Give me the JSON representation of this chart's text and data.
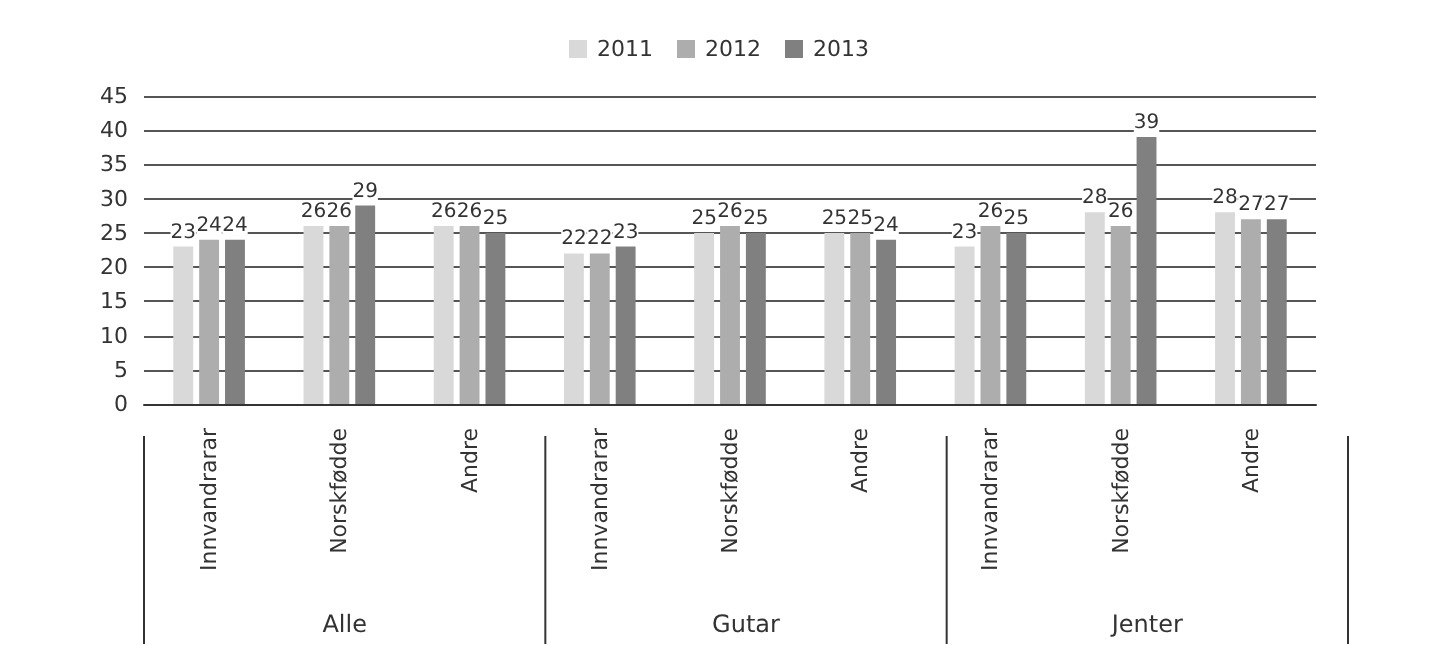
{
  "chart_data": {
    "type": "bar",
    "categories": [
      "Innvandrarar",
      "Norskfødde",
      "Andre",
      "Innvandrarar",
      "Norskfødde",
      "Andre",
      "Innvandrarar",
      "Norskfødde",
      "Andre"
    ],
    "series": [
      {
        "name": "2011",
        "color": "#d9d9d9",
        "values": [
          23,
          26,
          26,
          22,
          25,
          25,
          23,
          28,
          28
        ]
      },
      {
        "name": "2012",
        "color": "#adadad",
        "values": [
          24,
          26,
          26,
          22,
          26,
          25,
          26,
          26,
          27
        ]
      },
      {
        "name": "2013",
        "color": "#808080",
        "values": [
          24,
          29,
          25,
          23,
          25,
          24,
          25,
          39,
          27
        ]
      }
    ],
    "annotations": [
      "Alle",
      "Gutar",
      "Jenter"
    ],
    "ylim": [
      0,
      45
    ],
    "yticks": [
      0,
      5,
      10,
      15,
      20,
      25,
      30,
      35,
      40,
      45
    ],
    "grid": "y",
    "legend": "top",
    "data_labels": true
  }
}
